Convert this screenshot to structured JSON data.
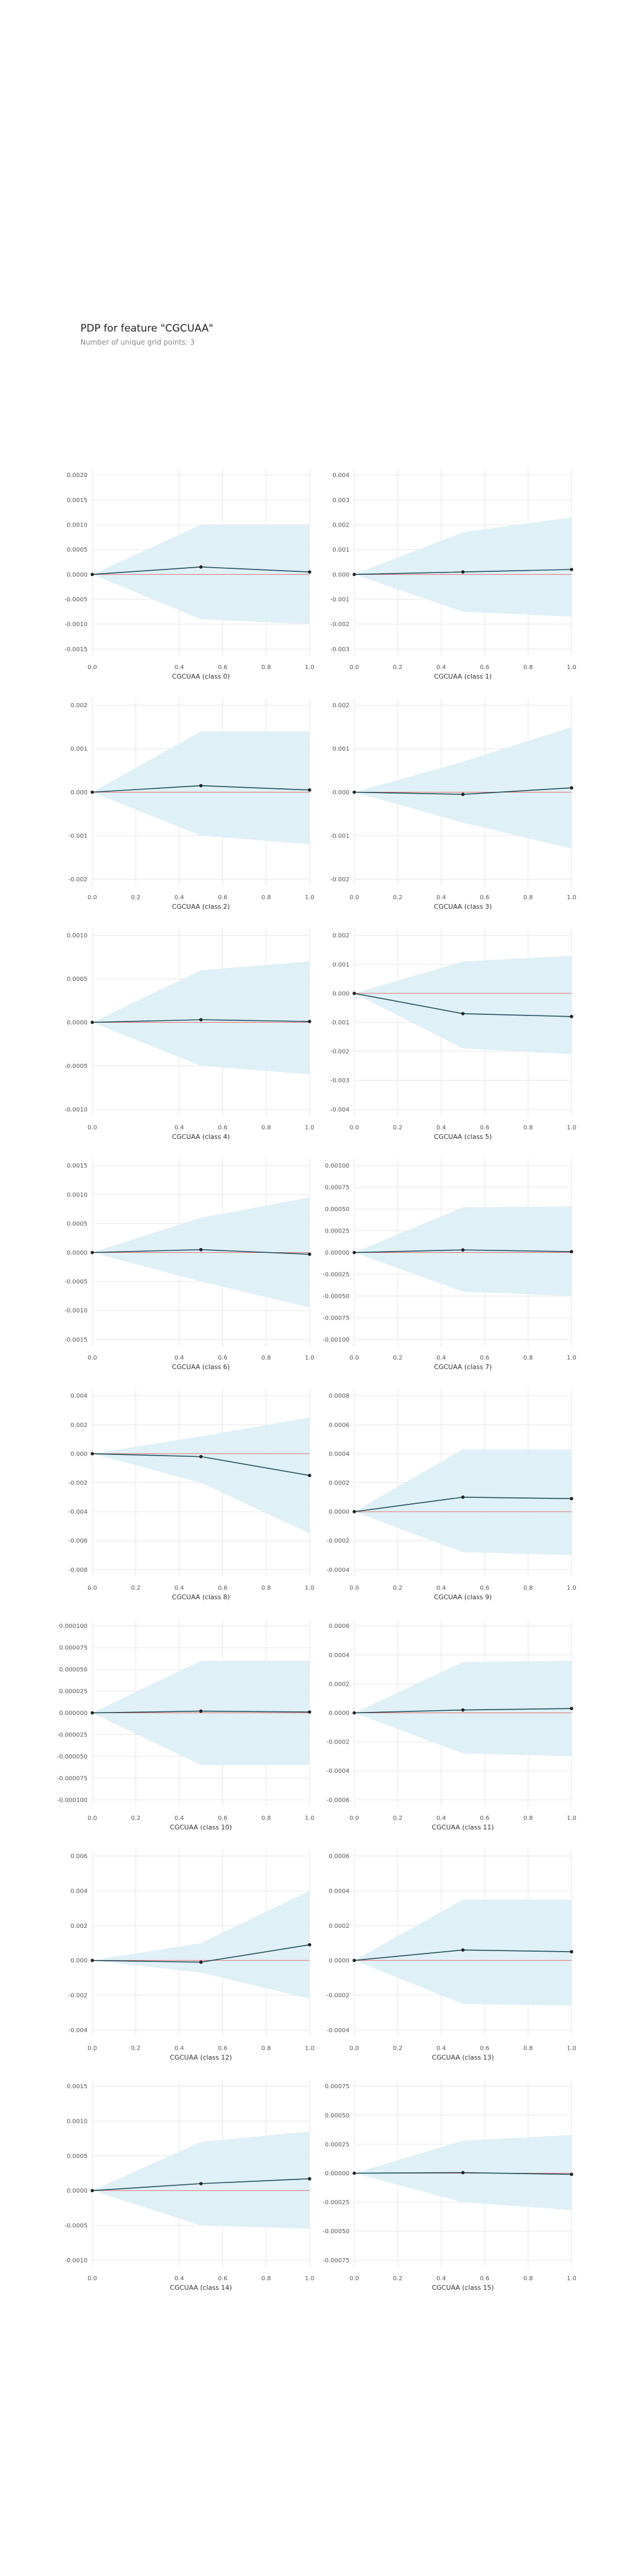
{
  "title": "PDP for feature \"CGCUAA\"",
  "subtitle": "Number of unique grid points: 3",
  "colors": {
    "band": "#dbeef5",
    "line": "#1f4e5a",
    "zero": "#e07070",
    "grid": "#e6e6e6",
    "tick": "#555555"
  },
  "chart_data": [
    {
      "type": "line",
      "xlabel": "CGCUAA (class 0)",
      "x": [
        0,
        0.5,
        1
      ],
      "y": [
        0,
        0.00015,
        5e-05
      ],
      "lower": [
        0,
        -0.0009,
        -0.001
      ],
      "upper": [
        0,
        0.001,
        0.001
      ],
      "yticks": [
        -0.0015,
        -0.001,
        -0.0005,
        0,
        0.0005,
        0.001,
        0.0015,
        0.002
      ],
      "ytick_labels": [
        "-0.0015",
        "-0.0010",
        "-0.0005",
        "0.0000",
        "0.0005",
        "0.0010",
        "0.0015",
        "0.0020"
      ],
      "xticks": [
        0,
        0.4,
        0.6,
        0.8,
        1
      ],
      "xtick_labels": [
        "0.0",
        "0.4",
        "0.6",
        "0.8",
        "1.0"
      ]
    },
    {
      "type": "line",
      "xlabel": "CGCUAA (class 1)",
      "x": [
        0,
        0.5,
        1
      ],
      "y": [
        0,
        0.0001,
        0.0002
      ],
      "lower": [
        0,
        -0.0015,
        -0.0017
      ],
      "upper": [
        0,
        0.0017,
        0.0023
      ],
      "yticks": [
        -0.003,
        -0.002,
        -0.001,
        0,
        0.001,
        0.002,
        0.003,
        0.004
      ],
      "ytick_labels": [
        "-0.003",
        "-0.002",
        "-0.001",
        "0.000",
        "0.001",
        "0.002",
        "0.003",
        "0.004"
      ],
      "xticks": [
        0,
        0.2,
        0.4,
        0.6,
        0.8,
        1
      ],
      "xtick_labels": [
        "0.0",
        "0.2",
        "0.4",
        "0.6",
        "0.8",
        "1.0"
      ]
    },
    {
      "type": "line",
      "xlabel": "CGCUAA (class 2)",
      "x": [
        0,
        0.5,
        1
      ],
      "y": [
        0,
        0.00015,
        5e-05
      ],
      "lower": [
        0,
        -0.001,
        -0.0012
      ],
      "upper": [
        0,
        0.0014,
        0.0014
      ],
      "yticks": [
        -0.002,
        -0.001,
        0,
        0.001,
        0.002
      ],
      "ytick_labels": [
        "-0.002",
        "-0.001",
        "0.000",
        "0.001",
        "0.002"
      ],
      "xticks": [
        0,
        0.2,
        0.4,
        0.6,
        0.8,
        1
      ],
      "xtick_labels": [
        "0.0",
        "0.2",
        "0.4",
        "0.6",
        "0.8",
        "1.0"
      ]
    },
    {
      "type": "line",
      "xlabel": "CGCUAA (class 3)",
      "x": [
        0,
        0.5,
        1
      ],
      "y": [
        0,
        -5e-05,
        0.0001
      ],
      "lower": [
        0,
        -0.0007,
        -0.0013
      ],
      "upper": [
        0,
        0.0007,
        0.0015
      ],
      "yticks": [
        -0.002,
        -0.001,
        0,
        0.001,
        0.002
      ],
      "ytick_labels": [
        "-0.002",
        "-0.001",
        "0.000",
        "0.001",
        "0.002"
      ],
      "xticks": [
        0,
        0.2,
        0.4,
        0.6,
        0.8,
        1
      ],
      "xtick_labels": [
        "0.0",
        "0.2",
        "0.4",
        "0.6",
        "0.8",
        "1.0"
      ]
    },
    {
      "type": "line",
      "xlabel": "CGCUAA (class 4)",
      "x": [
        0,
        0.5,
        1
      ],
      "y": [
        0,
        3e-05,
        1e-05
      ],
      "lower": [
        0,
        -0.0005,
        -0.0006
      ],
      "upper": [
        0,
        0.0006,
        0.0007
      ],
      "yticks": [
        -0.001,
        -0.0005,
        0,
        0.0005,
        0.001
      ],
      "ytick_labels": [
        "-0.0010",
        "-0.0005",
        "0.0000",
        "0.0005",
        "0.0010"
      ],
      "xticks": [
        0,
        0.4,
        0.6,
        0.8,
        1
      ],
      "xtick_labels": [
        "0.0",
        "0.4",
        "0.6",
        "0.8",
        "1.0"
      ]
    },
    {
      "type": "line",
      "xlabel": "CGCUAA (class 5)",
      "x": [
        0,
        0.5,
        1
      ],
      "y": [
        0,
        -0.0007,
        -0.0008
      ],
      "lower": [
        0,
        -0.0019,
        -0.0021
      ],
      "upper": [
        0,
        0.0011,
        0.0013
      ],
      "yticks": [
        -0.004,
        -0.003,
        -0.002,
        -0.001,
        0,
        0.001,
        0.002
      ],
      "ytick_labels": [
        "-0.004",
        "-0.003",
        "-0.002",
        "-0.001",
        "0.000",
        "0.001",
        "0.002"
      ],
      "xticks": [
        0,
        0.2,
        0.4,
        0.6,
        0.8,
        1
      ],
      "xtick_labels": [
        "0.0",
        "0.2",
        "0.4",
        "0.6",
        "0.8",
        "1.0"
      ]
    },
    {
      "type": "line",
      "xlabel": "CGCUAA (class 6)",
      "x": [
        0,
        0.5,
        1
      ],
      "y": [
        0,
        5e-05,
        -3e-05
      ],
      "lower": [
        0,
        -0.0005,
        -0.00095
      ],
      "upper": [
        0,
        0.0006,
        0.00095
      ],
      "yticks": [
        -0.0015,
        -0.001,
        -0.0005,
        0,
        0.0005,
        0.001,
        0.0015
      ],
      "ytick_labels": [
        "-0.0015",
        "-0.0010",
        "-0.0005",
        "0.0000",
        "0.0005",
        "0.0010",
        "0.0015"
      ],
      "xticks": [
        0,
        0.4,
        0.6,
        0.8,
        1
      ],
      "xtick_labels": [
        "0.0",
        "0.4",
        "0.6",
        "0.8",
        "1.0"
      ]
    },
    {
      "type": "line",
      "xlabel": "CGCUAA (class 7)",
      "x": [
        0,
        0.5,
        1
      ],
      "y": [
        0,
        3e-05,
        1e-05
      ],
      "lower": [
        0,
        -0.00045,
        -0.0005
      ],
      "upper": [
        0,
        0.00052,
        0.00053
      ],
      "yticks": [
        -0.001,
        -0.00075,
        -0.0005,
        -0.00025,
        0,
        0.00025,
        0.0005,
        0.00075,
        0.001
      ],
      "ytick_labels": [
        "-0.00100",
        "-0.00075",
        "-0.00050",
        "-0.00025",
        "0.00000",
        "0.00025",
        "0.00050",
        "0.00075",
        "0.00100"
      ],
      "xticks": [
        0,
        0.2,
        0.4,
        0.6,
        0.8,
        1
      ],
      "xtick_labels": [
        "0.0",
        "0.2",
        "0.4",
        "0.6",
        "0.8",
        "1.0"
      ]
    },
    {
      "type": "line",
      "xlabel": "CGCUAA (class 8)",
      "x": [
        0,
        0.5,
        1
      ],
      "y": [
        0,
        -0.0002,
        -0.0015
      ],
      "lower": [
        0,
        -0.002,
        -0.0055
      ],
      "upper": [
        0,
        0.0012,
        0.0025
      ],
      "yticks": [
        -0.008,
        -0.006,
        -0.004,
        -0.002,
        0,
        0.002,
        0.004
      ],
      "ytick_labels": [
        "-0.008",
        "-0.006",
        "-0.004",
        "-0.002",
        "0.000",
        "0.002",
        "0.004"
      ],
      "xticks": [
        0,
        0.2,
        0.4,
        0.6,
        0.8,
        1
      ],
      "xtick_labels": [
        "0.0",
        "0.2",
        "0.4",
        "0.6",
        "0.8",
        "1.0"
      ]
    },
    {
      "type": "line",
      "xlabel": "CGCUAA (class 9)",
      "x": [
        0,
        0.5,
        1
      ],
      "y": [
        0,
        0.0001,
        9e-05
      ],
      "lower": [
        0,
        -0.00028,
        -0.0003
      ],
      "upper": [
        0,
        0.00043,
        0.00043
      ],
      "yticks": [
        -0.0004,
        -0.0002,
        0,
        0.0002,
        0.0004,
        0.0006,
        0.0008
      ],
      "ytick_labels": [
        "-0.0004",
        "-0.0002",
        "0.0000",
        "0.0002",
        "0.0004",
        "0.0006",
        "0.0008"
      ],
      "xticks": [
        0,
        0.2,
        0.4,
        0.6,
        0.8,
        1
      ],
      "xtick_labels": [
        "0.0",
        "0.2",
        "0.4",
        "0.6",
        "0.8",
        "1.0"
      ]
    },
    {
      "type": "line",
      "xlabel": "CGCUAA (class 10)",
      "x": [
        0,
        0.5,
        1
      ],
      "y": [
        0,
        2e-06,
        1e-06
      ],
      "lower": [
        0,
        -6e-05,
        -6e-05
      ],
      "upper": [
        0,
        6e-05,
        6e-05
      ],
      "yticks": [
        -0.0001,
        -7.5e-05,
        -5e-05,
        -2.5e-05,
        0,
        2.5e-05,
        5e-05,
        7.5e-05,
        0.0001
      ],
      "ytick_labels": [
        "-0.000100",
        "-0.000075",
        "-0.000050",
        "-0.000025",
        "0.000000",
        "0.000025",
        "0.000050",
        "0.000075",
        "0.000100"
      ],
      "xticks": [
        0,
        0.2,
        0.4,
        0.6,
        0.8,
        1
      ],
      "xtick_labels": [
        "0.0",
        "0.2",
        "0.4",
        "0.6",
        "0.8",
        "1.0"
      ]
    },
    {
      "type": "line",
      "xlabel": "CGCUAA (class 11)",
      "x": [
        0,
        0.5,
        1
      ],
      "y": [
        0,
        2e-05,
        3e-05
      ],
      "lower": [
        0,
        -0.00028,
        -0.0003
      ],
      "upper": [
        0,
        0.00035,
        0.00036
      ],
      "yticks": [
        -0.0006,
        -0.0004,
        -0.0002,
        0,
        0.0002,
        0.0004,
        0.0006
      ],
      "ytick_labels": [
        "-0.0006",
        "-0.0004",
        "-0.0002",
        "0.0000",
        "0.0002",
        "0.0004",
        "0.0006"
      ],
      "xticks": [
        0,
        0.2,
        0.4,
        0.6,
        0.8,
        1
      ],
      "xtick_labels": [
        "0.0",
        "0.2",
        "0.4",
        "0.6",
        "0.8",
        "1.0"
      ]
    },
    {
      "type": "line",
      "xlabel": "CGCUAA (class 12)",
      "x": [
        0,
        0.5,
        1
      ],
      "y": [
        0,
        -0.0001,
        0.0009
      ],
      "lower": [
        0,
        -0.0007,
        -0.0022
      ],
      "upper": [
        0,
        0.001,
        0.004
      ],
      "yticks": [
        -0.004,
        -0.002,
        0,
        0.002,
        0.004,
        0.006
      ],
      "ytick_labels": [
        "-0.004",
        "-0.002",
        "0.000",
        "0.002",
        "0.004",
        "0.006"
      ],
      "xticks": [
        0,
        0.2,
        0.4,
        0.6,
        0.8,
        1
      ],
      "xtick_labels": [
        "0.0",
        "0.2",
        "0.4",
        "0.6",
        "0.8",
        "1.0"
      ]
    },
    {
      "type": "line",
      "xlabel": "CGCUAA (class 13)",
      "x": [
        0,
        0.5,
        1
      ],
      "y": [
        0,
        6e-05,
        5e-05
      ],
      "lower": [
        0,
        -0.00025,
        -0.00026
      ],
      "upper": [
        0,
        0.00035,
        0.00035
      ],
      "yticks": [
        -0.0004,
        -0.0002,
        0,
        0.0002,
        0.0004,
        0.0006
      ],
      "ytick_labels": [
        "-0.0004",
        "-0.0002",
        "0.0000",
        "0.0002",
        "0.0004",
        "0.0006"
      ],
      "xticks": [
        0,
        0.2,
        0.4,
        0.6,
        0.8,
        1
      ],
      "xtick_labels": [
        "0.0",
        "0.2",
        "0.4",
        "0.6",
        "0.8",
        "1.0"
      ]
    },
    {
      "type": "line",
      "xlabel": "CGCUAA (class 14)",
      "x": [
        0,
        0.5,
        1
      ],
      "y": [
        0,
        0.0001,
        0.00017
      ],
      "lower": [
        0,
        -0.0005,
        -0.00055
      ],
      "upper": [
        0,
        0.0007,
        0.00085
      ],
      "yticks": [
        -0.001,
        -0.0005,
        0,
        0.0005,
        0.001,
        0.0015
      ],
      "ytick_labels": [
        "-0.0010",
        "-0.0005",
        "0.0000",
        "0.0005",
        "0.0010",
        "0.0015"
      ],
      "xticks": [
        0,
        0.4,
        0.6,
        0.8,
        1
      ],
      "xtick_labels": [
        "0.0",
        "0.4",
        "0.6",
        "0.8",
        "1.0"
      ]
    },
    {
      "type": "line",
      "xlabel": "CGCUAA (class 15)",
      "x": [
        0,
        0.5,
        1
      ],
      "y": [
        0,
        5e-06,
        -1e-05
      ],
      "lower": [
        0,
        -0.00025,
        -0.00032
      ],
      "upper": [
        0,
        0.00028,
        0.00033
      ],
      "yticks": [
        -0.00075,
        -0.0005,
        -0.00025,
        0,
        0.00025,
        0.0005,
        0.00075
      ],
      "ytick_labels": [
        "-0.00075",
        "-0.00050",
        "-0.00025",
        "0.00000",
        "0.00025",
        "0.00050",
        "0.00075"
      ],
      "xticks": [
        0,
        0.2,
        0.4,
        0.6,
        0.8,
        1
      ],
      "xtick_labels": [
        "0.0",
        "0.2",
        "0.4",
        "0.6",
        "0.8",
        "1.0"
      ]
    }
  ]
}
